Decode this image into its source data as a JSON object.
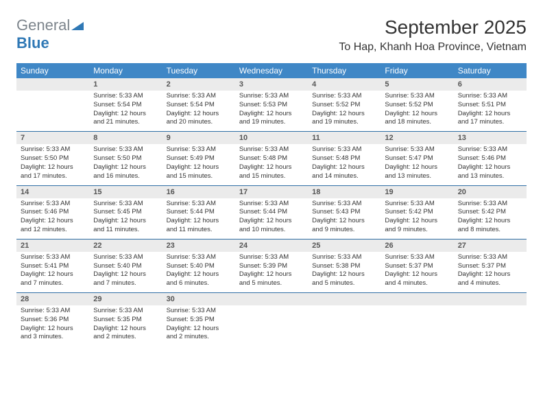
{
  "logo": {
    "text_gray": "General",
    "text_blue": "Blue"
  },
  "title": "September 2025",
  "location": "To Hap, Khanh Hoa Province, Vietnam",
  "colors": {
    "header_bg": "#3f87c6",
    "header_text": "#ffffff",
    "daynum_bg": "#ebebeb",
    "row_divider": "#2f6fa5",
    "body_text": "#333333",
    "logo_gray": "#7d858c",
    "logo_blue": "#2f78b5"
  },
  "day_headers": [
    "Sunday",
    "Monday",
    "Tuesday",
    "Wednesday",
    "Thursday",
    "Friday",
    "Saturday"
  ],
  "weeks": [
    {
      "nums": [
        "",
        "1",
        "2",
        "3",
        "4",
        "5",
        "6"
      ],
      "cells": [
        {
          "sunrise": "",
          "sunset": "",
          "daylight": ""
        },
        {
          "sunrise": "Sunrise: 5:33 AM",
          "sunset": "Sunset: 5:54 PM",
          "daylight": "Daylight: 12 hours and 21 minutes."
        },
        {
          "sunrise": "Sunrise: 5:33 AM",
          "sunset": "Sunset: 5:54 PM",
          "daylight": "Daylight: 12 hours and 20 minutes."
        },
        {
          "sunrise": "Sunrise: 5:33 AM",
          "sunset": "Sunset: 5:53 PM",
          "daylight": "Daylight: 12 hours and 19 minutes."
        },
        {
          "sunrise": "Sunrise: 5:33 AM",
          "sunset": "Sunset: 5:52 PM",
          "daylight": "Daylight: 12 hours and 19 minutes."
        },
        {
          "sunrise": "Sunrise: 5:33 AM",
          "sunset": "Sunset: 5:52 PM",
          "daylight": "Daylight: 12 hours and 18 minutes."
        },
        {
          "sunrise": "Sunrise: 5:33 AM",
          "sunset": "Sunset: 5:51 PM",
          "daylight": "Daylight: 12 hours and 17 minutes."
        }
      ]
    },
    {
      "nums": [
        "7",
        "8",
        "9",
        "10",
        "11",
        "12",
        "13"
      ],
      "cells": [
        {
          "sunrise": "Sunrise: 5:33 AM",
          "sunset": "Sunset: 5:50 PM",
          "daylight": "Daylight: 12 hours and 17 minutes."
        },
        {
          "sunrise": "Sunrise: 5:33 AM",
          "sunset": "Sunset: 5:50 PM",
          "daylight": "Daylight: 12 hours and 16 minutes."
        },
        {
          "sunrise": "Sunrise: 5:33 AM",
          "sunset": "Sunset: 5:49 PM",
          "daylight": "Daylight: 12 hours and 15 minutes."
        },
        {
          "sunrise": "Sunrise: 5:33 AM",
          "sunset": "Sunset: 5:48 PM",
          "daylight": "Daylight: 12 hours and 15 minutes."
        },
        {
          "sunrise": "Sunrise: 5:33 AM",
          "sunset": "Sunset: 5:48 PM",
          "daylight": "Daylight: 12 hours and 14 minutes."
        },
        {
          "sunrise": "Sunrise: 5:33 AM",
          "sunset": "Sunset: 5:47 PM",
          "daylight": "Daylight: 12 hours and 13 minutes."
        },
        {
          "sunrise": "Sunrise: 5:33 AM",
          "sunset": "Sunset: 5:46 PM",
          "daylight": "Daylight: 12 hours and 13 minutes."
        }
      ]
    },
    {
      "nums": [
        "14",
        "15",
        "16",
        "17",
        "18",
        "19",
        "20"
      ],
      "cells": [
        {
          "sunrise": "Sunrise: 5:33 AM",
          "sunset": "Sunset: 5:46 PM",
          "daylight": "Daylight: 12 hours and 12 minutes."
        },
        {
          "sunrise": "Sunrise: 5:33 AM",
          "sunset": "Sunset: 5:45 PM",
          "daylight": "Daylight: 12 hours and 11 minutes."
        },
        {
          "sunrise": "Sunrise: 5:33 AM",
          "sunset": "Sunset: 5:44 PM",
          "daylight": "Daylight: 12 hours and 11 minutes."
        },
        {
          "sunrise": "Sunrise: 5:33 AM",
          "sunset": "Sunset: 5:44 PM",
          "daylight": "Daylight: 12 hours and 10 minutes."
        },
        {
          "sunrise": "Sunrise: 5:33 AM",
          "sunset": "Sunset: 5:43 PM",
          "daylight": "Daylight: 12 hours and 9 minutes."
        },
        {
          "sunrise": "Sunrise: 5:33 AM",
          "sunset": "Sunset: 5:42 PM",
          "daylight": "Daylight: 12 hours and 9 minutes."
        },
        {
          "sunrise": "Sunrise: 5:33 AM",
          "sunset": "Sunset: 5:42 PM",
          "daylight": "Daylight: 12 hours and 8 minutes."
        }
      ]
    },
    {
      "nums": [
        "21",
        "22",
        "23",
        "24",
        "25",
        "26",
        "27"
      ],
      "cells": [
        {
          "sunrise": "Sunrise: 5:33 AM",
          "sunset": "Sunset: 5:41 PM",
          "daylight": "Daylight: 12 hours and 7 minutes."
        },
        {
          "sunrise": "Sunrise: 5:33 AM",
          "sunset": "Sunset: 5:40 PM",
          "daylight": "Daylight: 12 hours and 7 minutes."
        },
        {
          "sunrise": "Sunrise: 5:33 AM",
          "sunset": "Sunset: 5:40 PM",
          "daylight": "Daylight: 12 hours and 6 minutes."
        },
        {
          "sunrise": "Sunrise: 5:33 AM",
          "sunset": "Sunset: 5:39 PM",
          "daylight": "Daylight: 12 hours and 5 minutes."
        },
        {
          "sunrise": "Sunrise: 5:33 AM",
          "sunset": "Sunset: 5:38 PM",
          "daylight": "Daylight: 12 hours and 5 minutes."
        },
        {
          "sunrise": "Sunrise: 5:33 AM",
          "sunset": "Sunset: 5:37 PM",
          "daylight": "Daylight: 12 hours and 4 minutes."
        },
        {
          "sunrise": "Sunrise: 5:33 AM",
          "sunset": "Sunset: 5:37 PM",
          "daylight": "Daylight: 12 hours and 4 minutes."
        }
      ]
    },
    {
      "nums": [
        "28",
        "29",
        "30",
        "",
        "",
        "",
        ""
      ],
      "cells": [
        {
          "sunrise": "Sunrise: 5:33 AM",
          "sunset": "Sunset: 5:36 PM",
          "daylight": "Daylight: 12 hours and 3 minutes."
        },
        {
          "sunrise": "Sunrise: 5:33 AM",
          "sunset": "Sunset: 5:35 PM",
          "daylight": "Daylight: 12 hours and 2 minutes."
        },
        {
          "sunrise": "Sunrise: 5:33 AM",
          "sunset": "Sunset: 5:35 PM",
          "daylight": "Daylight: 12 hours and 2 minutes."
        },
        {
          "sunrise": "",
          "sunset": "",
          "daylight": ""
        },
        {
          "sunrise": "",
          "sunset": "",
          "daylight": ""
        },
        {
          "sunrise": "",
          "sunset": "",
          "daylight": ""
        },
        {
          "sunrise": "",
          "sunset": "",
          "daylight": ""
        }
      ]
    }
  ]
}
